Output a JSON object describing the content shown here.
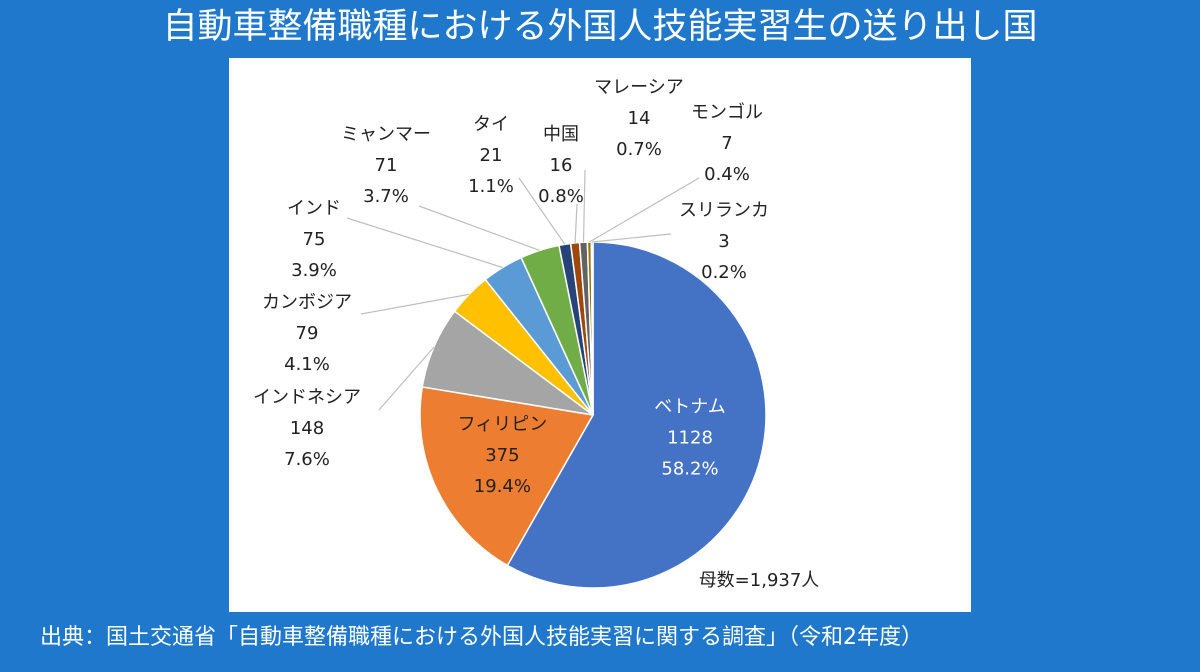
{
  "title": "自動車整備職種における外国人技能実習生の送り出し国",
  "source": "出典：国土交通省「自動車整備職種における外国人技能実習に関する調査」（令和2年度）",
  "chart_data": {
    "type": "pie",
    "total_label": "母数=1,937人",
    "start_angle_deg": 0,
    "direction": "clockwise",
    "slices": [
      {
        "name": "ベトナム",
        "value": 1128,
        "pct": "58.2%",
        "color": "#4472c4",
        "label_inside": true,
        "label_color": "#ffffff"
      },
      {
        "name": "フィリピン",
        "value": 375,
        "pct": "19.4%",
        "color": "#ed7d31",
        "label_inside": true,
        "label_color": "#222222"
      },
      {
        "name": "インドネシア",
        "value": 148,
        "pct": "7.6%",
        "color": "#a5a5a5",
        "label_inside": false
      },
      {
        "name": "カンボジア",
        "value": 79,
        "pct": "4.1%",
        "color": "#ffc000",
        "label_inside": false
      },
      {
        "name": "インド",
        "value": 75,
        "pct": "3.9%",
        "color": "#5b9bd5",
        "label_inside": false
      },
      {
        "name": "ミャンマー",
        "value": 71,
        "pct": "3.7%",
        "color": "#70ad47",
        "label_inside": false
      },
      {
        "name": "タイ",
        "value": 21,
        "pct": "1.1%",
        "color": "#264478",
        "label_inside": false
      },
      {
        "name": "中国",
        "value": 16,
        "pct": "0.8%",
        "color": "#9e480e",
        "label_inside": false
      },
      {
        "name": "マレーシア",
        "value": 14,
        "pct": "0.7%",
        "color": "#636363",
        "label_inside": false
      },
      {
        "name": "モンゴル",
        "value": 7,
        "pct": "0.4%",
        "color": "#997300",
        "label_inside": false
      },
      {
        "name": "スリランカ",
        "value": 3,
        "pct": "0.2%",
        "color": "#7fb0e0",
        "label_inside": false
      }
    ]
  }
}
